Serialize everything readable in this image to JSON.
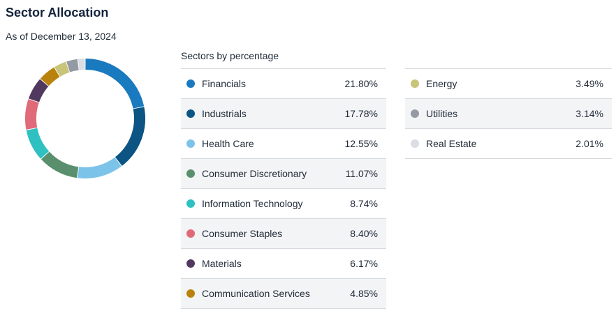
{
  "header": {
    "title": "Sector Allocation",
    "as_of": "As of December 13, 2024"
  },
  "table_heading": "Sectors by percentage",
  "chart_data": {
    "type": "pie",
    "title": "Sector Allocation",
    "categories": [
      "Financials",
      "Industrials",
      "Health Care",
      "Consumer Discretionary",
      "Information Technology",
      "Consumer Staples",
      "Materials",
      "Communication Services",
      "Energy",
      "Utilities",
      "Real Estate"
    ],
    "values": [
      21.8,
      17.78,
      12.55,
      11.07,
      8.74,
      8.4,
      6.17,
      4.85,
      3.49,
      3.14,
      2.01
    ],
    "labels": [
      "21.80%",
      "17.78%",
      "12.55%",
      "11.07%",
      "8.74%",
      "8.40%",
      "6.17%",
      "4.85%",
      "3.49%",
      "3.14%",
      "2.01%"
    ],
    "colors": [
      "#1a7abf",
      "#0b5483",
      "#7cc3ea",
      "#5a8f6e",
      "#2fc1c2",
      "#e06a78",
      "#51385e",
      "#b9820c",
      "#c8c47a",
      "#949aa3",
      "#dadde2"
    ],
    "donut": true
  }
}
